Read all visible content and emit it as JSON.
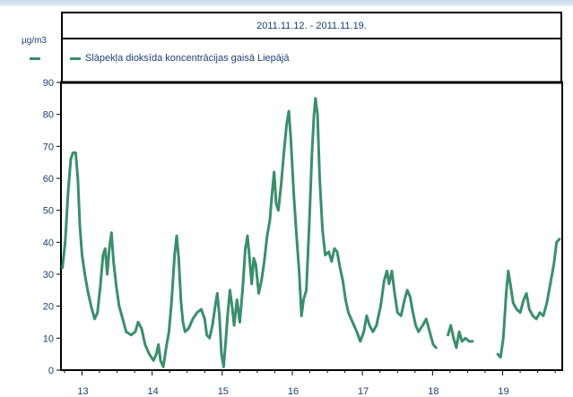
{
  "chart_data": {
    "type": "line",
    "title": "2011.11.12. - 2011.11.19.",
    "ylabel": "µg/m3",
    "ylim": [
      0,
      90
    ],
    "xlim": [
      12.7,
      19.85
    ],
    "yticks": [
      0,
      10,
      20,
      30,
      40,
      50,
      60,
      70,
      80,
      90
    ],
    "xticks": [
      13,
      14,
      15,
      16,
      17,
      18,
      19
    ],
    "grid": false,
    "legend_position": "top-left",
    "line_color": "#3a8f6a",
    "series": [
      {
        "name": "Slāpekļa dioksīda koncentrācijas gaisā Liepājā",
        "segments": [
          [
            [
              12.72,
              32
            ],
            [
              12.76,
              40
            ],
            [
              12.8,
              55
            ],
            [
              12.84,
              66
            ],
            [
              12.87,
              68
            ],
            [
              12.91,
              68
            ],
            [
              12.94,
              60
            ],
            [
              12.97,
              45
            ],
            [
              13.0,
              36
            ],
            [
              13.04,
              30
            ],
            [
              13.08,
              25
            ],
            [
              13.13,
              20
            ],
            [
              13.18,
              16
            ],
            [
              13.22,
              18
            ],
            [
              13.26,
              26
            ],
            [
              13.3,
              36
            ],
            [
              13.33,
              38
            ],
            [
              13.36,
              30
            ],
            [
              13.39,
              38
            ],
            [
              13.42,
              43
            ],
            [
              13.45,
              34
            ],
            [
              13.49,
              26
            ],
            [
              13.53,
              20
            ],
            [
              13.58,
              16
            ],
            [
              13.63,
              12
            ],
            [
              13.7,
              11
            ],
            [
              13.76,
              12
            ],
            [
              13.8,
              15
            ],
            [
              13.85,
              13
            ],
            [
              13.9,
              8
            ],
            [
              13.96,
              5
            ],
            [
              14.02,
              3
            ],
            [
              14.06,
              5
            ],
            [
              14.09,
              8
            ],
            [
              14.12,
              3
            ],
            [
              14.16,
              1
            ],
            [
              14.2,
              7
            ],
            [
              14.24,
              12
            ],
            [
              14.28,
              22
            ],
            [
              14.32,
              36
            ],
            [
              14.35,
              42
            ],
            [
              14.38,
              35
            ],
            [
              14.41,
              22
            ],
            [
              14.44,
              15
            ],
            [
              14.47,
              12
            ],
            [
              14.52,
              13
            ],
            [
              14.58,
              16
            ],
            [
              14.64,
              18
            ],
            [
              14.7,
              19
            ],
            [
              14.75,
              16
            ],
            [
              14.78,
              11
            ],
            [
              14.82,
              10
            ],
            [
              14.86,
              14
            ],
            [
              14.9,
              20
            ],
            [
              14.93,
              24
            ],
            [
              14.96,
              17
            ],
            [
              14.99,
              5
            ],
            [
              15.02,
              1
            ],
            [
              15.05,
              9
            ],
            [
              15.08,
              18
            ],
            [
              15.11,
              25
            ],
            [
              15.14,
              20
            ],
            [
              15.17,
              14
            ],
            [
              15.21,
              22
            ],
            [
              15.25,
              15
            ],
            [
              15.29,
              25
            ],
            [
              15.33,
              38
            ],
            [
              15.36,
              42
            ],
            [
              15.39,
              35
            ],
            [
              15.42,
              27
            ],
            [
              15.45,
              35
            ],
            [
              15.48,
              33
            ],
            [
              15.52,
              24
            ],
            [
              15.56,
              28
            ],
            [
              15.6,
              34
            ],
            [
              15.64,
              42
            ],
            [
              15.68,
              47
            ],
            [
              15.71,
              55
            ],
            [
              15.74,
              62
            ],
            [
              15.77,
              52
            ],
            [
              15.8,
              50
            ],
            [
              15.84,
              58
            ],
            [
              15.88,
              68
            ],
            [
              15.92,
              77
            ],
            [
              15.95,
              81
            ],
            [
              15.98,
              72
            ],
            [
              16.02,
              55
            ],
            [
              16.06,
              42
            ],
            [
              16.1,
              30
            ],
            [
              16.13,
              17
            ],
            [
              16.16,
              22
            ],
            [
              16.2,
              25
            ],
            [
              16.24,
              45
            ],
            [
              16.28,
              68
            ],
            [
              16.31,
              80
            ],
            [
              16.33,
              85
            ],
            [
              16.36,
              80
            ],
            [
              16.39,
              60
            ],
            [
              16.43,
              44
            ],
            [
              16.47,
              36
            ],
            [
              16.52,
              37
            ],
            [
              16.56,
              34
            ],
            [
              16.6,
              38
            ],
            [
              16.64,
              37
            ],
            [
              16.68,
              32
            ],
            [
              16.72,
              28
            ],
            [
              16.76,
              22
            ],
            [
              16.8,
              18
            ],
            [
              16.86,
              15
            ],
            [
              16.92,
              12
            ],
            [
              16.97,
              9
            ],
            [
              17.02,
              12
            ],
            [
              17.06,
              17
            ],
            [
              17.1,
              14
            ],
            [
              17.15,
              12
            ],
            [
              17.2,
              14
            ],
            [
              17.26,
              20
            ],
            [
              17.31,
              28
            ],
            [
              17.35,
              31
            ],
            [
              17.38,
              27
            ],
            [
              17.42,
              31
            ],
            [
              17.46,
              24
            ],
            [
              17.5,
              18
            ],
            [
              17.55,
              17
            ],
            [
              17.6,
              22
            ],
            [
              17.64,
              25
            ],
            [
              17.68,
              23
            ],
            [
              17.72,
              18
            ],
            [
              17.76,
              14
            ],
            [
              17.8,
              12
            ],
            [
              17.86,
              14
            ],
            [
              17.91,
              16
            ],
            [
              17.96,
              12
            ],
            [
              18.01,
              8
            ],
            [
              18.05,
              7
            ]
          ],
          [
            [
              18.22,
              11
            ],
            [
              18.26,
              14
            ],
            [
              18.3,
              10
            ],
            [
              18.34,
              7
            ],
            [
              18.38,
              12
            ],
            [
              18.42,
              9
            ],
            [
              18.47,
              10
            ],
            [
              18.52,
              9
            ],
            [
              18.57,
              9
            ]
          ],
          [
            [
              18.93,
              5
            ],
            [
              18.97,
              4
            ],
            [
              19.01,
              10
            ],
            [
              19.05,
              24
            ],
            [
              19.08,
              31
            ],
            [
              19.11,
              27
            ],
            [
              19.15,
              21
            ],
            [
              19.2,
              19
            ],
            [
              19.25,
              18
            ],
            [
              19.3,
              22
            ],
            [
              19.34,
              24
            ],
            [
              19.38,
              19
            ],
            [
              19.43,
              17
            ],
            [
              19.48,
              16
            ],
            [
              19.53,
              18
            ],
            [
              19.58,
              17
            ],
            [
              19.63,
              21
            ],
            [
              19.68,
              27
            ],
            [
              19.73,
              33
            ],
            [
              19.77,
              40
            ],
            [
              19.81,
              41
            ]
          ]
        ]
      }
    ]
  }
}
